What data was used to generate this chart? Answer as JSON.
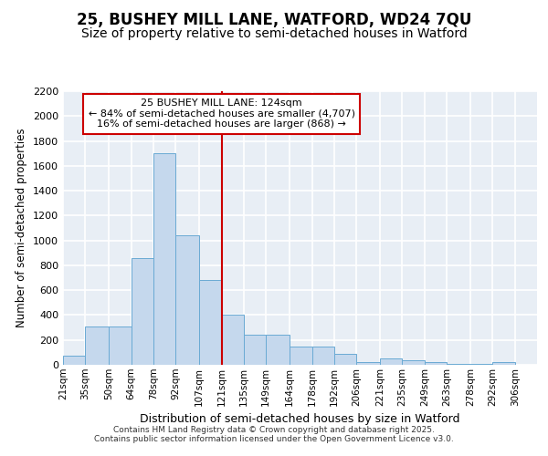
{
  "title1": "25, BUSHEY MILL LANE, WATFORD, WD24 7QU",
  "title2": "Size of property relative to semi-detached houses in Watford",
  "xlabel": "Distribution of semi-detached houses by size in Watford",
  "ylabel": "Number of semi-detached properties",
  "annotation_line1": "25 BUSHEY MILL LANE: 124sqm",
  "annotation_line2": "← 84% of semi-detached houses are smaller (4,707)",
  "annotation_line3": "16% of semi-detached houses are larger (868) →",
  "footer1": "Contains HM Land Registry data © Crown copyright and database right 2025.",
  "footer2": "Contains public sector information licensed under the Open Government Licence v3.0.",
  "bin_labels": [
    "21sqm",
    "35sqm",
    "50sqm",
    "64sqm",
    "78sqm",
    "92sqm",
    "107sqm",
    "121sqm",
    "135sqm",
    "149sqm",
    "164sqm",
    "178sqm",
    "192sqm",
    "206sqm",
    "221sqm",
    "235sqm",
    "249sqm",
    "263sqm",
    "278sqm",
    "292sqm",
    "306sqm"
  ],
  "bin_edges": [
    21,
    35,
    50,
    64,
    78,
    92,
    107,
    121,
    135,
    149,
    164,
    178,
    192,
    206,
    221,
    235,
    249,
    263,
    278,
    292,
    306,
    320
  ],
  "bar_heights": [
    75,
    310,
    310,
    860,
    1700,
    1040,
    680,
    400,
    245,
    245,
    150,
    150,
    85,
    25,
    50,
    35,
    25,
    5,
    5,
    25,
    0
  ],
  "bar_color": "#c5d8ed",
  "bar_edge_color": "#6aaad4",
  "vline_x": 121,
  "vline_color": "#cc0000",
  "ylim": [
    0,
    2200
  ],
  "yticks": [
    0,
    200,
    400,
    600,
    800,
    1000,
    1200,
    1400,
    1600,
    1800,
    2000,
    2200
  ],
  "bg_color": "#e8eef5",
  "grid_color": "#ffffff",
  "fig_bg": "#ffffff",
  "title1_fontsize": 12,
  "title2_fontsize": 10
}
